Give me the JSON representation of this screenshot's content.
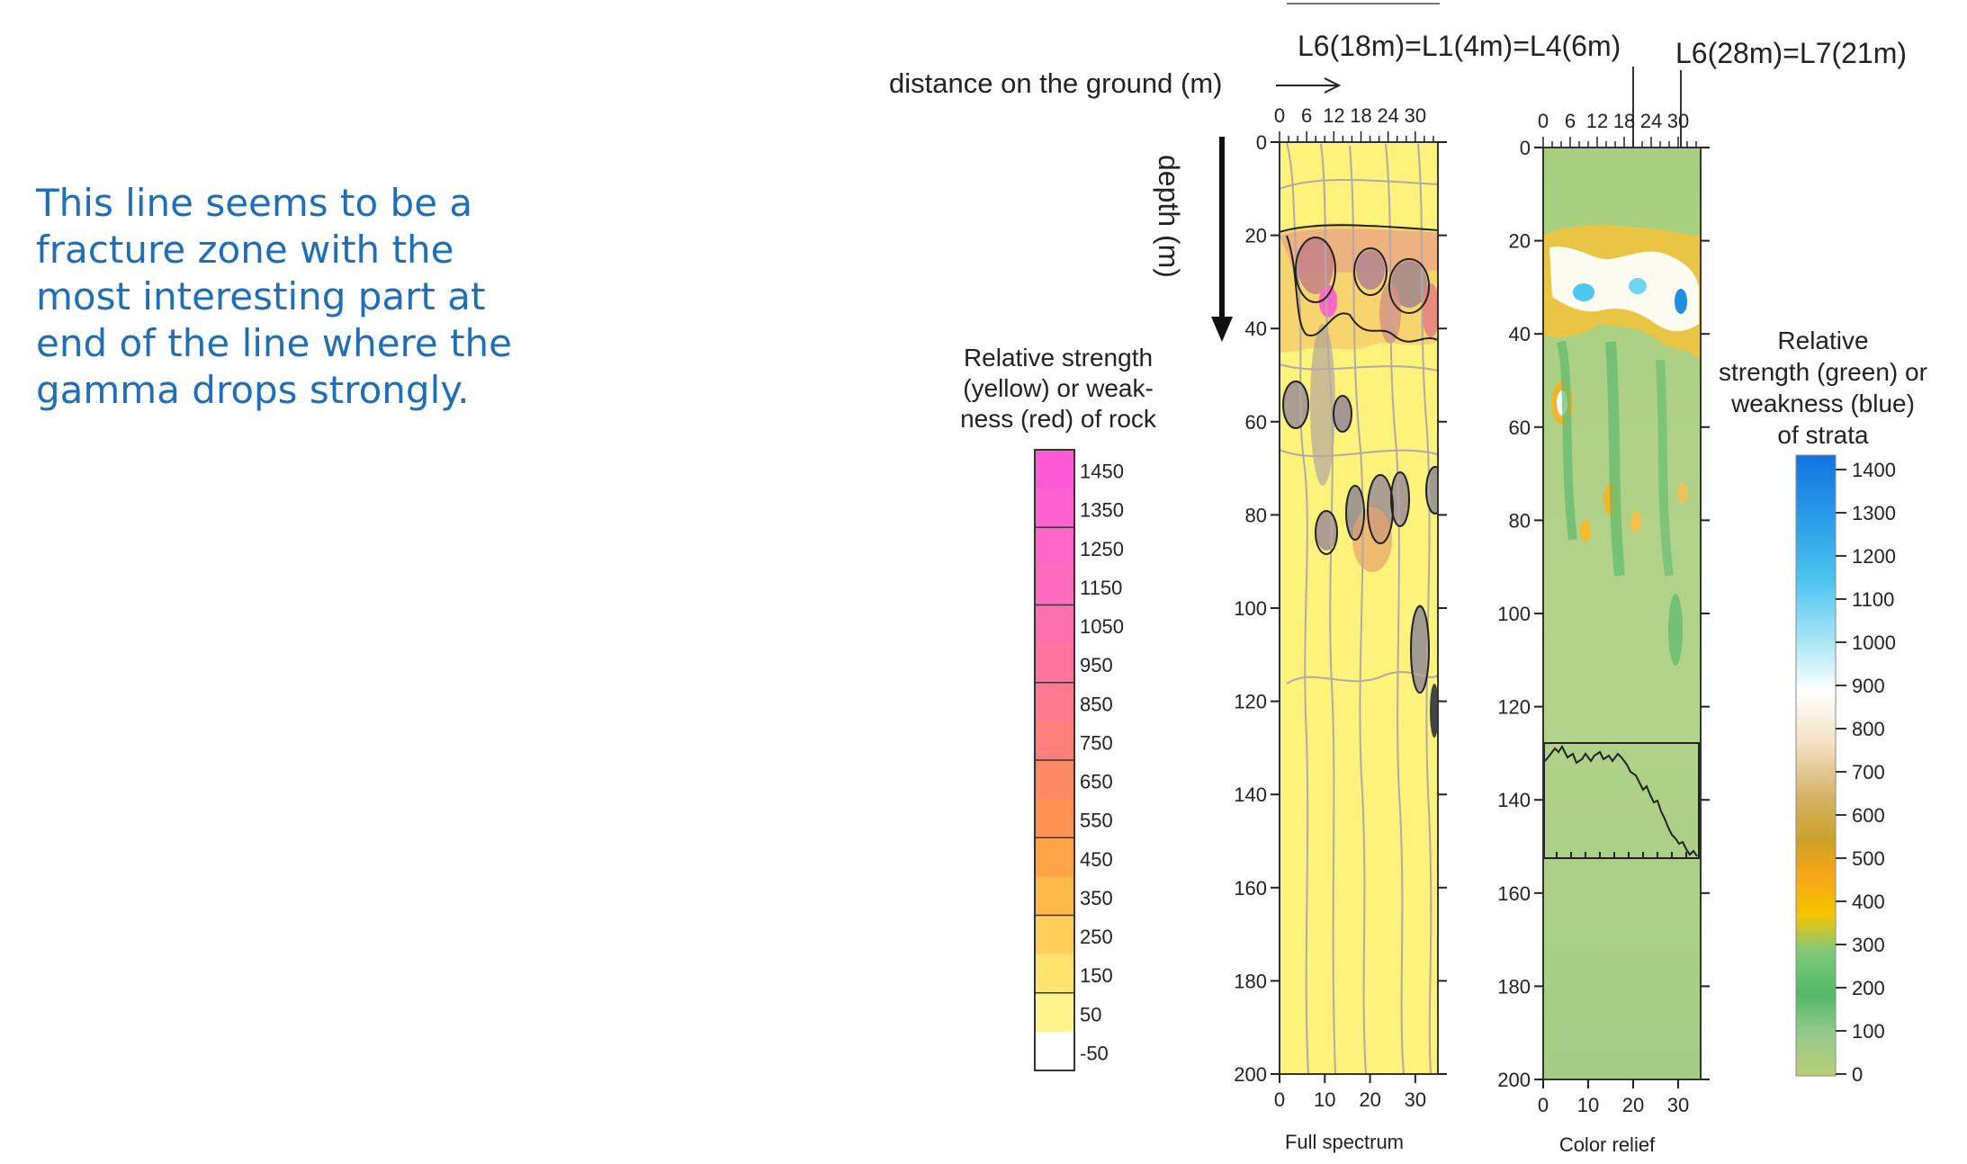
{
  "note_lines": [
    "This line seems to be a",
    "fracture zone with the",
    "most interesting part at",
    "end of the line where the",
    "gamma drops strongly."
  ],
  "labels": {
    "distance_axis": "distance on the ground (m)",
    "depth_axis": "depth (m)",
    "annotation_left": "L6(18m)=L1(4m)=L4(6m)",
    "annotation_right": "L6(28m)=L7(21m)",
    "panel_left_title": "Full spectrum",
    "panel_right_title": "Color relief"
  },
  "left_legend": {
    "title_lines": [
      "Relative strength",
      "(yellow) or weak-",
      "ness (red) of rock"
    ],
    "values": [
      "1450",
      "1350",
      "1250",
      "1150",
      "1050",
      "950",
      "850",
      "750",
      "650",
      "550",
      "450",
      "350",
      "250",
      "150",
      "50",
      "-50"
    ],
    "colors": [
      "#ff59d6",
      "#ff61d0",
      "#ff66c8",
      "#ff6cbb",
      "#ff70ae",
      "#ff759f",
      "#ff7a8f",
      "#ff7f7a",
      "#ff8866",
      "#ff9155",
      "#ffa447",
      "#ffb84a",
      "#ffcf5a",
      "#ffe36e",
      "#fff38c",
      "#ffffff"
    ]
  },
  "right_legend": {
    "title_lines": [
      "Relative",
      "strength (green) or",
      "weakness (blue)",
      "of strata"
    ],
    "values": [
      "1400",
      "1300",
      "1200",
      "1100",
      "1000",
      "900",
      "800",
      "700",
      "600",
      "500",
      "400",
      "300",
      "200",
      "100",
      "0"
    ],
    "colors": [
      "#1273e0",
      "#2a9be8",
      "#4cc4ee",
      "#8fe0f3",
      "#d4f4f8",
      "#ffffff",
      "#f4e3c6",
      "#e3c48f",
      "#c9a326",
      "#f0a519",
      "#f6c400",
      "#8ccb7a",
      "#56bb6a",
      "#8fc786",
      "#b6cf78"
    ]
  },
  "axes": {
    "depth_ticks": [
      "0",
      "20",
      "40",
      "60",
      "80",
      "100",
      "120",
      "140",
      "160",
      "180",
      "200"
    ],
    "distance_top_ticks": [
      "0",
      "6",
      "12",
      "18",
      "24",
      "30"
    ],
    "distance_bottom_ticks": [
      "0",
      "10",
      "20",
      "30"
    ]
  },
  "colors": {
    "note_text": "#1f6fb8",
    "full_spectrum_bg": "#fdf27a",
    "color_relief_bg": "#a9cf80"
  }
}
